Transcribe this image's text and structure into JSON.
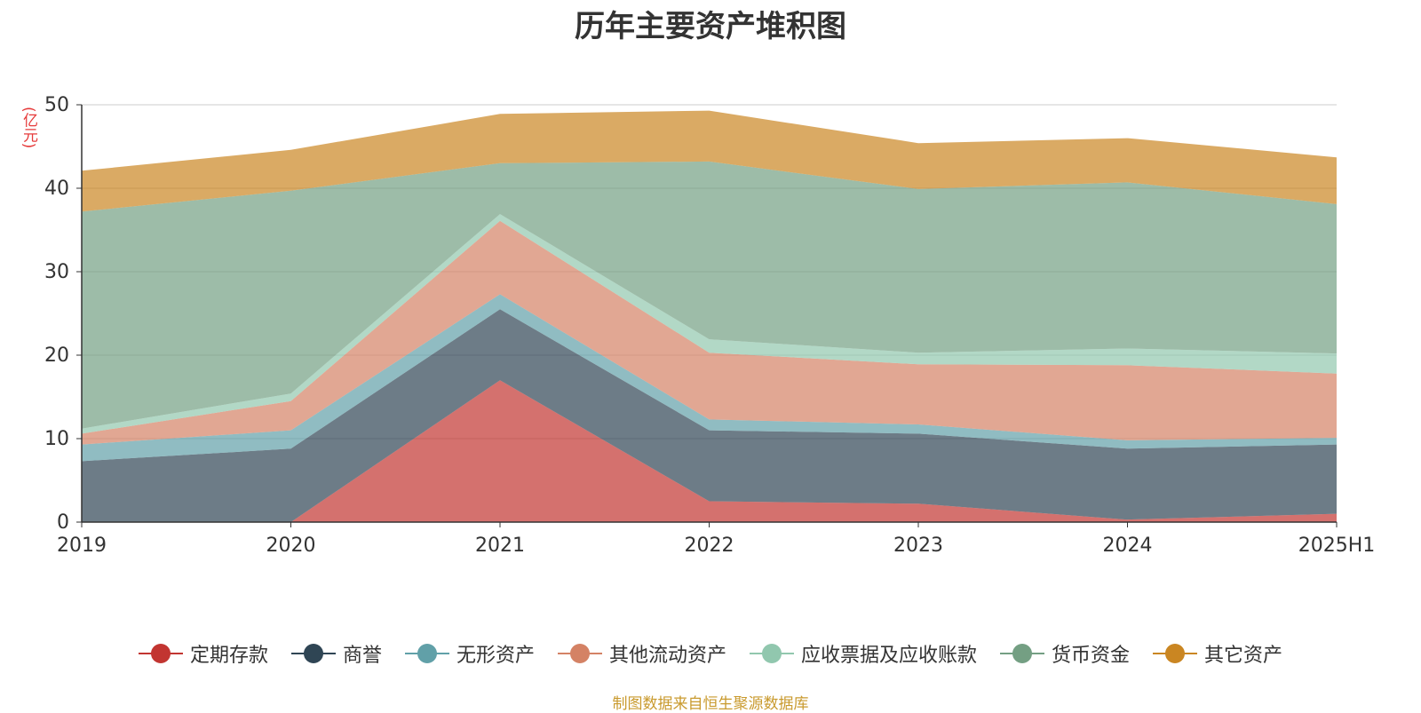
{
  "chart_data": {
    "type": "area",
    "stacked": true,
    "title": "历年主要资产堆积图",
    "ylabel": "(亿元)",
    "xlabel": "",
    "ylim": [
      0,
      50
    ],
    "yticks": [
      0,
      10,
      20,
      30,
      40,
      50
    ],
    "categories": [
      "2019",
      "2020",
      "2021",
      "2022",
      "2023",
      "2024",
      "2025H1"
    ],
    "legend_position": "bottom",
    "series": [
      {
        "name": "定期存款",
        "color": "#c23531",
        "values": [
          0,
          0,
          17,
          2.5,
          2.2,
          0.3,
          1.0
        ]
      },
      {
        "name": "商誉",
        "color": "#2f4554",
        "values": [
          7.3,
          8.8,
          8.5,
          8.5,
          8.4,
          8.5,
          8.3
        ]
      },
      {
        "name": "无形资产",
        "color": "#61a0a8",
        "values": [
          2.0,
          2.2,
          1.8,
          1.3,
          1.1,
          1.0,
          0.8
        ]
      },
      {
        "name": "其他流动资产",
        "color": "#d48265",
        "values": [
          1.3,
          3.5,
          8.8,
          8.0,
          7.2,
          9.0,
          7.7
        ]
      },
      {
        "name": "应收票据及应收账款",
        "color": "#91c7ae",
        "values": [
          0.6,
          0.9,
          0.8,
          1.6,
          1.4,
          2.0,
          2.4
        ]
      },
      {
        "name": "货币资金",
        "color": "#749f83",
        "values": [
          26.0,
          24.3,
          6.1,
          21.3,
          19.6,
          19.9,
          17.9
        ]
      },
      {
        "name": "其它资产",
        "color": "#ca8622",
        "values": [
          4.9,
          4.9,
          5.9,
          6.1,
          5.5,
          5.3,
          5.6
        ]
      }
    ]
  },
  "source_note": "制图数据来自恒生聚源数据库"
}
